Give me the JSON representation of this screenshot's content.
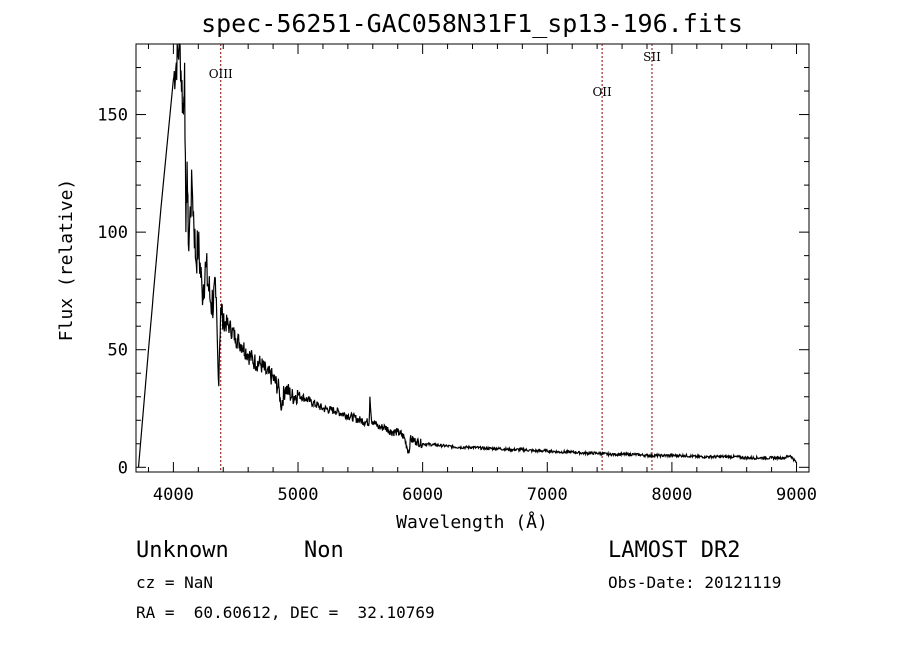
{
  "chart_data": {
    "type": "line",
    "title": "spec-56251-GAC058N31F1_sp13-196.fits",
    "xlabel": "Wavelength (Å)",
    "ylabel": "Flux (relative)",
    "xlim": [
      3700,
      9100
    ],
    "ylim": [
      -2,
      180
    ],
    "x_ticks": [
      4000,
      5000,
      6000,
      7000,
      8000,
      9000
    ],
    "x_minor_step": 200,
    "y_ticks": [
      0,
      50,
      100,
      150
    ],
    "y_minor_step": 10,
    "grid": false,
    "series": [
      {
        "x": [
          3720,
          3800,
          3900,
          4000,
          4050,
          4080,
          4090,
          4100,
          4110,
          4120,
          4150,
          4180,
          4200,
          4230,
          4260,
          4300,
          4340,
          4360,
          4380,
          4400,
          4450,
          4500,
          4550,
          4600,
          4650,
          4700,
          4750,
          4800,
          4850,
          4861,
          4900,
          4950,
          5000,
          5100,
          5200,
          5300,
          5400,
          5500,
          5570,
          5577,
          5590,
          5650,
          5700,
          5750,
          5800,
          5850,
          5890,
          5900,
          5950,
          6000,
          6100,
          6200,
          6300,
          6400,
          6500,
          6600,
          6700,
          6800,
          6900,
          7000,
          7100,
          7200,
          7300,
          7400,
          7500,
          7600,
          7700,
          7800,
          7900,
          8000,
          8100,
          8200,
          8300,
          8400,
          8500,
          8600,
          8700,
          8800,
          8900,
          8950,
          9000
        ],
        "y": [
          0,
          50,
          110,
          165,
          180,
          150,
          172,
          100,
          130,
          95,
          120,
          88,
          95,
          75,
          85,
          70,
          72,
          38,
          68,
          62,
          60,
          55,
          52,
          48,
          45,
          44,
          40,
          38,
          33,
          26,
          34,
          30,
          31,
          28,
          25,
          24,
          22,
          20,
          19,
          30,
          20,
          17,
          17,
          15,
          15,
          13,
          6,
          12,
          11,
          10,
          9.5,
          9,
          8.5,
          8.5,
          8,
          8,
          7.5,
          7.5,
          7,
          7,
          6.5,
          6.5,
          6,
          6,
          5.5,
          5.5,
          5.5,
          5,
          5,
          5,
          5,
          4.5,
          4.5,
          4.5,
          4.5,
          4,
          4,
          4,
          4,
          5,
          2
        ]
      }
    ],
    "lines": [
      {
        "label": "OIII",
        "x": 4380
      },
      {
        "label": "OII",
        "x": 7440
      },
      {
        "label": "SII",
        "x": 7840
      }
    ]
  },
  "info": {
    "class": "Unknown",
    "subclass": "Non",
    "survey": "LAMOST DR2",
    "cz": "cz = NaN",
    "obs_date": "Obs-Date: 20121119",
    "coords": "RA =  60.60612, DEC =  32.10769"
  }
}
